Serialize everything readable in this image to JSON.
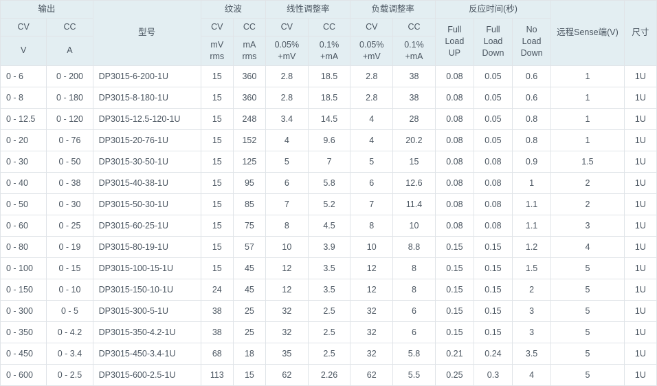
{
  "header": {
    "output": "输出",
    "model": "型号",
    "ripple": "纹波",
    "line_reg": "线性调整率",
    "load_reg": "负载调整率",
    "resp_time": "反应时间(秒)",
    "sense": "远程Sense端(V)",
    "size": "尺寸",
    "cv": "CV",
    "cc": "CC",
    "v": "V",
    "a": "A",
    "mv_rms": "mV\nrms",
    "ma_rms": "mA\nrms",
    "pct_mv": "0.05%\n+mV",
    "pct_ma_line": "0.1%\n+mA",
    "pct_mv_load": "0.05%\n+mV",
    "pct_ma_load": "0.1%\n+mA",
    "full_up": "Full\nLoad\nUP",
    "full_down": "Full\nLoad\nDown",
    "no_down": "No\nLoad\nDown"
  },
  "rows": [
    {
      "cv": "0 - 6",
      "cc": "0 - 200",
      "model": "DP3015-6-200-1U",
      "r_cv": "15",
      "r_cc": "360",
      "l_cv": "2.8",
      "l_cc": "18.5",
      "ld_cv": "2.8",
      "ld_cc": "38",
      "t1": "0.08",
      "t2": "0.05",
      "t3": "0.6",
      "sense": "1",
      "size": "1U"
    },
    {
      "cv": "0 - 8",
      "cc": "0 - 180",
      "model": "DP3015-8-180-1U",
      "r_cv": "15",
      "r_cc": "360",
      "l_cv": "2.8",
      "l_cc": "18.5",
      "ld_cv": "2.8",
      "ld_cc": "38",
      "t1": "0.08",
      "t2": "0.05",
      "t3": "0.6",
      "sense": "1",
      "size": "1U"
    },
    {
      "cv": "0 - 12.5",
      "cc": "0 - 120",
      "model": "DP3015-12.5-120-1U",
      "r_cv": "15",
      "r_cc": "248",
      "l_cv": "3.4",
      "l_cc": "14.5",
      "ld_cv": "4",
      "ld_cc": "28",
      "t1": "0.08",
      "t2": "0.05",
      "t3": "0.8",
      "sense": "1",
      "size": "1U"
    },
    {
      "cv": "0 - 20",
      "cc": "0 - 76",
      "model": "DP3015-20-76-1U",
      "r_cv": "15",
      "r_cc": "152",
      "l_cv": "4",
      "l_cc": "9.6",
      "ld_cv": "4",
      "ld_cc": "20.2",
      "t1": "0.08",
      "t2": "0.05",
      "t3": "0.8",
      "sense": "1",
      "size": "1U"
    },
    {
      "cv": "0 - 30",
      "cc": "0 - 50",
      "model": "DP3015-30-50-1U",
      "r_cv": "15",
      "r_cc": "125",
      "l_cv": "5",
      "l_cc": "7",
      "ld_cv": "5",
      "ld_cc": "15",
      "t1": "0.08",
      "t2": "0.08",
      "t3": "0.9",
      "sense": "1.5",
      "size": "1U"
    },
    {
      "cv": "0 - 40",
      "cc": "0 - 38",
      "model": "DP3015-40-38-1U",
      "r_cv": "15",
      "r_cc": "95",
      "l_cv": "6",
      "l_cc": "5.8",
      "ld_cv": "6",
      "ld_cc": "12.6",
      "t1": "0.08",
      "t2": "0.08",
      "t3": "1",
      "sense": "2",
      "size": "1U"
    },
    {
      "cv": "0 - 50",
      "cc": "0 - 30",
      "model": "DP3015-50-30-1U",
      "r_cv": "15",
      "r_cc": "85",
      "l_cv": "7",
      "l_cc": "5.2",
      "ld_cv": "7",
      "ld_cc": "11.4",
      "t1": "0.08",
      "t2": "0.08",
      "t3": "1.1",
      "sense": "2",
      "size": "1U"
    },
    {
      "cv": "0 - 60",
      "cc": "0 - 25",
      "model": "DP3015-60-25-1U",
      "r_cv": "15",
      "r_cc": "75",
      "l_cv": "8",
      "l_cc": "4.5",
      "ld_cv": "8",
      "ld_cc": "10",
      "t1": "0.08",
      "t2": "0.08",
      "t3": "1.1",
      "sense": "3",
      "size": "1U"
    },
    {
      "cv": "0 - 80",
      "cc": "0 - 19",
      "model": "DP3015-80-19-1U",
      "r_cv": "15",
      "r_cc": "57",
      "l_cv": "10",
      "l_cc": "3.9",
      "ld_cv": "10",
      "ld_cc": "8.8",
      "t1": "0.15",
      "t2": "0.15",
      "t3": "1.2",
      "sense": "4",
      "size": "1U"
    },
    {
      "cv": "0 - 100",
      "cc": "0 - 15",
      "model": "DP3015-100-15-1U",
      "r_cv": "15",
      "r_cc": "45",
      "l_cv": "12",
      "l_cc": "3.5",
      "ld_cv": "12",
      "ld_cc": "8",
      "t1": "0.15",
      "t2": "0.15",
      "t3": "1.5",
      "sense": "5",
      "size": "1U"
    },
    {
      "cv": "0 - 150",
      "cc": "0 - 10",
      "model": "DP3015-150-10-1U",
      "r_cv": "24",
      "r_cc": "45",
      "l_cv": "12",
      "l_cc": "3.5",
      "ld_cv": "12",
      "ld_cc": "8",
      "t1": "0.15",
      "t2": "0.15",
      "t3": "2",
      "sense": "5",
      "size": "1U"
    },
    {
      "cv": "0 - 300",
      "cc": "0 - 5",
      "model": "DP3015-300-5-1U",
      "r_cv": "38",
      "r_cc": "25",
      "l_cv": "32",
      "l_cc": "2.5",
      "ld_cv": "32",
      "ld_cc": "6",
      "t1": "0.15",
      "t2": "0.15",
      "t3": "3",
      "sense": "5",
      "size": "1U"
    },
    {
      "cv": "0 - 350",
      "cc": "0 - 4.2",
      "model": "DP3015-350-4.2-1U",
      "r_cv": "38",
      "r_cc": "25",
      "l_cv": "32",
      "l_cc": "2.5",
      "ld_cv": "32",
      "ld_cc": "6",
      "t1": "0.15",
      "t2": "0.15",
      "t3": "3",
      "sense": "5",
      "size": "1U"
    },
    {
      "cv": "0 - 450",
      "cc": "0 - 3.4",
      "model": "DP3015-450-3.4-1U",
      "r_cv": "68",
      "r_cc": "18",
      "l_cv": "35",
      "l_cc": "2.5",
      "ld_cv": "32",
      "ld_cc": "5.8",
      "t1": "0.21",
      "t2": "0.24",
      "t3": "3.5",
      "sense": "5",
      "size": "1U"
    },
    {
      "cv": "0 - 600",
      "cc": "0 - 2.5",
      "model": "DP3015-600-2.5-1U",
      "r_cv": "113",
      "r_cc": "15",
      "l_cv": "62",
      "l_cc": "2.26",
      "ld_cv": "62",
      "ld_cc": "5.5",
      "t1": "0.25",
      "t2": "0.3",
      "t3": "4",
      "sense": "5",
      "size": "1U"
    }
  ]
}
